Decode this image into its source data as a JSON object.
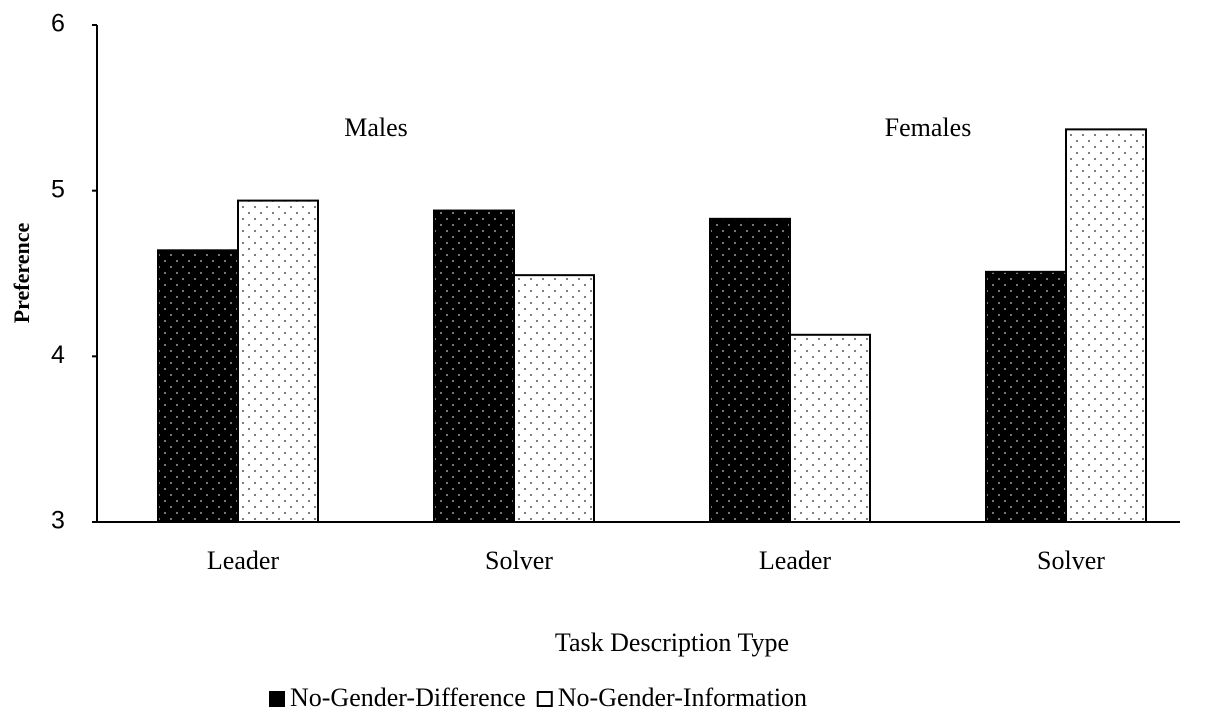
{
  "chart_data": {
    "type": "bar",
    "y_label": "Preference",
    "x_label": "Task Description Type",
    "categories": [
      "Leader",
      "Solver",
      "Leader",
      "Solver"
    ],
    "annotations": [
      "Males",
      "Females"
    ],
    "series": [
      {
        "name": "No-Gender-Difference",
        "color": "#000000",
        "values": [
          4.64,
          4.88,
          4.83,
          4.51
        ]
      },
      {
        "name": "No-Gender-Information",
        "color": "#ffffff",
        "values": [
          4.94,
          4.49,
          4.13,
          5.37
        ]
      }
    ],
    "ylim": [
      3,
      6
    ],
    "yticks": [
      3,
      4,
      5,
      6
    ],
    "legend": "bottom"
  }
}
